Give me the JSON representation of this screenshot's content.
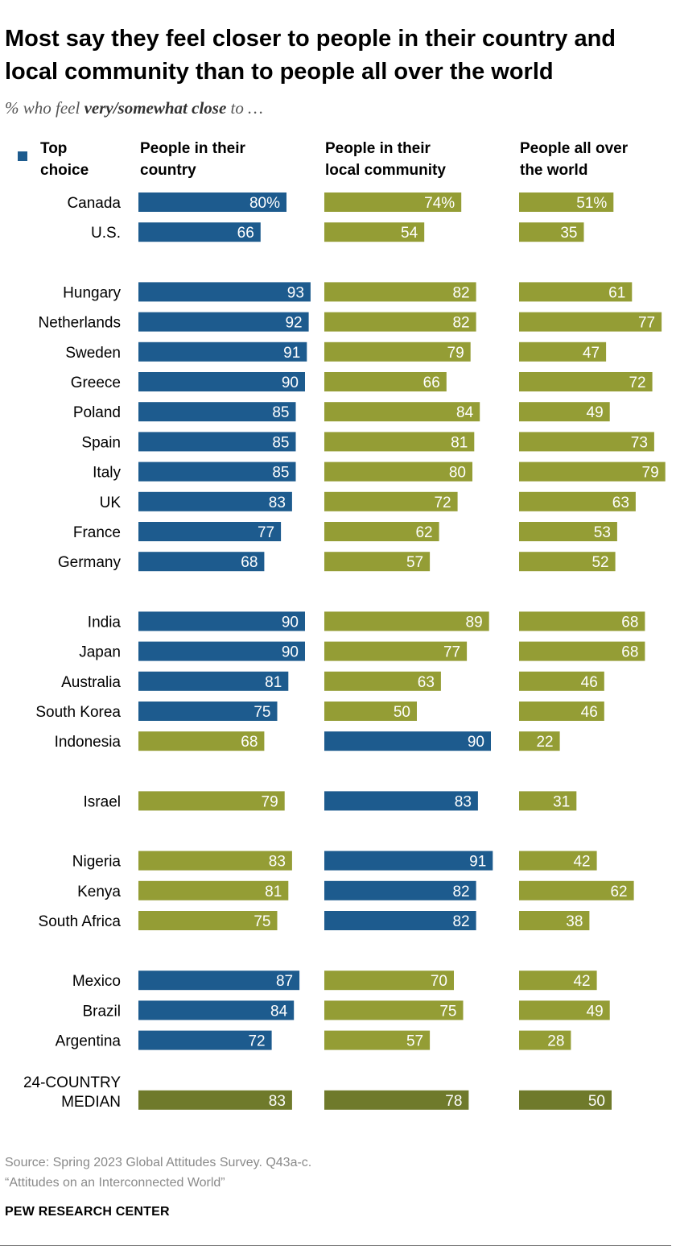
{
  "header": {
    "title": "Most say they feel closer to people in their country and local community than to people all over the world",
    "subtitle_prefix": "% who feel ",
    "subtitle_bold": "very/somewhat close",
    "subtitle_suffix": " to …"
  },
  "legend": {
    "label": "Top\nchoice",
    "color": "#1d5b8e"
  },
  "colors": {
    "top": "#1d5b8e",
    "other": "#949d35",
    "median": "#6f7a2b"
  },
  "footer": {
    "source": "Source: Spring 2023 Global Attitudes Survey. Q43a-c.",
    "report": "“Attitudes on an Interconnected World”",
    "brand": "PEW RESEARCH CENTER"
  },
  "chart_data": {
    "type": "bar",
    "columns": [
      "People in their\ncountry",
      "People in their\nlocal community",
      "People all over\nthe world"
    ],
    "groups": [
      [
        {
          "name": "Canada",
          "values": [
            80,
            74,
            51
          ],
          "top": 0,
          "labels": [
            "80%",
            "74%",
            "51%"
          ]
        },
        {
          "name": "U.S.",
          "values": [
            66,
            54,
            35
          ],
          "top": 0
        }
      ],
      [
        {
          "name": "Hungary",
          "values": [
            93,
            82,
            61
          ],
          "top": 0
        },
        {
          "name": "Netherlands",
          "values": [
            92,
            82,
            77
          ],
          "top": 0
        },
        {
          "name": "Sweden",
          "values": [
            91,
            79,
            47
          ],
          "top": 0
        },
        {
          "name": "Greece",
          "values": [
            90,
            66,
            72
          ],
          "top": 0
        },
        {
          "name": "Poland",
          "values": [
            85,
            84,
            49
          ],
          "top": 0
        },
        {
          "name": "Spain",
          "values": [
            85,
            81,
            73
          ],
          "top": 0
        },
        {
          "name": "Italy",
          "values": [
            85,
            80,
            79
          ],
          "top": 0
        },
        {
          "name": "UK",
          "values": [
            83,
            72,
            63
          ],
          "top": 0
        },
        {
          "name": "France",
          "values": [
            77,
            62,
            53
          ],
          "top": 0
        },
        {
          "name": "Germany",
          "values": [
            68,
            57,
            52
          ],
          "top": 0
        }
      ],
      [
        {
          "name": "India",
          "values": [
            90,
            89,
            68
          ],
          "top": 0
        },
        {
          "name": "Japan",
          "values": [
            90,
            77,
            68
          ],
          "top": 0
        },
        {
          "name": "Australia",
          "values": [
            81,
            63,
            46
          ],
          "top": 0
        },
        {
          "name": "South Korea",
          "values": [
            75,
            50,
            46
          ],
          "top": 0
        },
        {
          "name": "Indonesia",
          "values": [
            68,
            90,
            22
          ],
          "top": 1
        }
      ],
      [
        {
          "name": "Israel",
          "values": [
            79,
            83,
            31
          ],
          "top": 1
        }
      ],
      [
        {
          "name": "Nigeria",
          "values": [
            83,
            91,
            42
          ],
          "top": 1
        },
        {
          "name": "Kenya",
          "values": [
            81,
            82,
            62
          ],
          "top": 1
        },
        {
          "name": "South Africa",
          "values": [
            75,
            82,
            38
          ],
          "top": 1
        }
      ],
      [
        {
          "name": "Mexico",
          "values": [
            87,
            70,
            42
          ],
          "top": 0
        },
        {
          "name": "Brazil",
          "values": [
            84,
            75,
            49
          ],
          "top": 0
        },
        {
          "name": "Argentina",
          "values": [
            72,
            57,
            28
          ],
          "top": 0
        }
      ],
      [
        {
          "name": "24-COUNTRY\nMEDIAN",
          "values": [
            83,
            78,
            50
          ],
          "top": -1,
          "median": true
        }
      ]
    ]
  }
}
